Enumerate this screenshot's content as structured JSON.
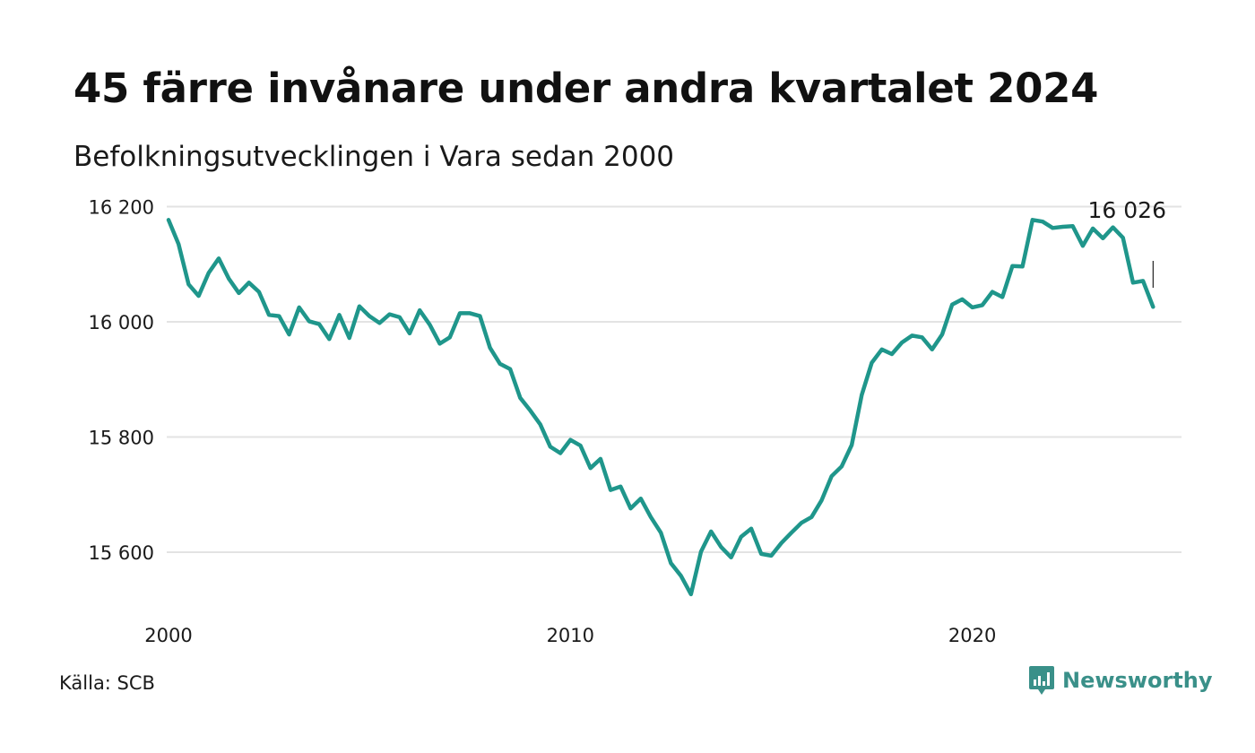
{
  "title": "45 färre invånare under andra kvartalet 2024",
  "subtitle": "Befolkningsutvecklingen i Vara sedan 2000",
  "source": "Källa: SCB",
  "brand": "Newsworthy",
  "colors": {
    "line": "#1f968b",
    "grid": "#e3e3e3",
    "brand": "#3a9089"
  },
  "chart_data": {
    "type": "line",
    "title": "45 färre invånare under andra kvartalet 2024",
    "subtitle": "Befolkningsutvecklingen i Vara sedan 2000",
    "xlabel": "",
    "ylabel": "",
    "x_start": 2000.0,
    "x_step": 0.25,
    "xlim": [
      2000,
      2025
    ],
    "ylim": [
      15500,
      16200
    ],
    "x_ticks": [
      2000,
      2010,
      2020
    ],
    "x_tick_labels": [
      "2000",
      "2010",
      "2020"
    ],
    "y_ticks": [
      15600,
      15800,
      16000,
      16200
    ],
    "y_tick_labels": [
      "15 600",
      "15 800",
      "16 000",
      "16 200"
    ],
    "grid": "horizontal",
    "end_label": "16 026",
    "series": [
      {
        "values": [
          16177,
          16135,
          16065,
          16045,
          16085,
          16110,
          16075,
          16050,
          16068,
          16052,
          16012,
          16010,
          15978,
          16025,
          16001,
          15996,
          15970,
          16012,
          15972,
          16027,
          16010,
          15998,
          16013,
          16008,
          15980,
          16020,
          15995,
          15962,
          15973,
          16015,
          16015,
          16010,
          15955,
          15927,
          15918,
          15868,
          15846,
          15822,
          15783,
          15772,
          15795,
          15785,
          15746,
          15762,
          15708,
          15714,
          15676,
          15693,
          15661,
          15634,
          15581,
          15559,
          15527,
          15601,
          15636,
          15609,
          15591,
          15627,
          15641,
          15597,
          15594,
          15616,
          15634,
          15651,
          15661,
          15690,
          15732,
          15749,
          15786,
          15873,
          15929,
          15952,
          15944,
          15964,
          15976,
          15973,
          15952,
          15978,
          16030,
          16039,
          16025,
          16029,
          16052,
          16043,
          16097,
          16096,
          16177,
          16174,
          16163,
          16165,
          16166,
          16132,
          16162,
          16145,
          16164,
          16146,
          16068,
          16071,
          16026
        ]
      }
    ]
  }
}
